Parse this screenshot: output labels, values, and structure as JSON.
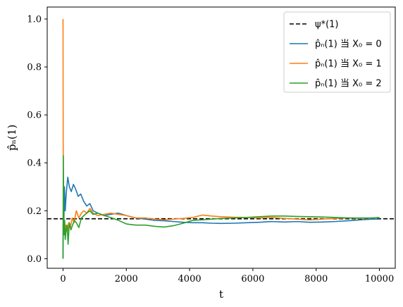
{
  "chart_data": {
    "type": "line",
    "xlabel": "t",
    "ylabel": "p̂ₙ(1)",
    "xlim": [
      -500,
      10500
    ],
    "ylim": [
      -0.04,
      1.05
    ],
    "xticks": [
      0,
      2000,
      4000,
      6000,
      8000,
      10000
    ],
    "xtick_labels": [
      "0",
      "2000",
      "4000",
      "6000",
      "8000",
      "10000"
    ],
    "yticks": [
      0.0,
      0.2,
      0.4,
      0.6,
      0.8,
      1.0
    ],
    "ytick_labels": [
      "0.0",
      "0.2",
      "0.4",
      "0.6",
      "0.8",
      "1.0"
    ],
    "grid": false,
    "legend_position": "top-right",
    "reference_line": {
      "name": "ψ*(1)",
      "y": 0.1667,
      "color": "#000000",
      "style": "dashed"
    },
    "series": [
      {
        "name": "p̂ₙ(1) 当 X₀ = 0",
        "color": "#1f77b4",
        "x": [
          0,
          10,
          25,
          45,
          70,
          100,
          150,
          200,
          260,
          330,
          400,
          480,
          560,
          650,
          750,
          850,
          950,
          1100,
          1300,
          1500,
          1750,
          2000,
          2300,
          2600,
          2900,
          3200,
          3500,
          3800,
          4100,
          4400,
          4700,
          5000,
          5400,
          5800,
          6200,
          6600,
          7000,
          7400,
          7800,
          8200,
          8600,
          9000,
          9400,
          9800,
          10000
        ],
        "y": [
          0.0,
          0.25,
          0.12,
          0.3,
          0.2,
          0.27,
          0.34,
          0.3,
          0.28,
          0.31,
          0.29,
          0.26,
          0.27,
          0.24,
          0.22,
          0.23,
          0.2,
          0.19,
          0.18,
          0.185,
          0.19,
          0.18,
          0.17,
          0.165,
          0.16,
          0.158,
          0.155,
          0.152,
          0.15,
          0.15,
          0.148,
          0.147,
          0.148,
          0.15,
          0.152,
          0.155,
          0.153,
          0.155,
          0.152,
          0.153,
          0.155,
          0.158,
          0.162,
          0.165,
          0.165
        ]
      },
      {
        "name": "p̂ₙ(1) 当 X₀ = 1",
        "color": "#ff7f0e",
        "x": [
          0,
          5,
          10,
          20,
          35,
          50,
          70,
          100,
          140,
          180,
          230,
          290,
          350,
          420,
          500,
          580,
          660,
          750,
          850,
          950,
          1100,
          1300,
          1500,
          1750,
          2000,
          2300,
          2600,
          2900,
          3200,
          3500,
          3800,
          4100,
          4400,
          4700,
          5000,
          5400,
          5800,
          6200,
          6600,
          7000,
          7400,
          7800,
          8200,
          8600,
          9000,
          9400,
          9800,
          10000
        ],
        "y": [
          1.0,
          0.5,
          0.3,
          0.18,
          0.1,
          0.16,
          0.12,
          0.14,
          0.11,
          0.15,
          0.13,
          0.17,
          0.15,
          0.2,
          0.17,
          0.19,
          0.2,
          0.19,
          0.21,
          0.19,
          0.18,
          0.185,
          0.19,
          0.185,
          0.18,
          0.17,
          0.17,
          0.165,
          0.162,
          0.165,
          0.168,
          0.172,
          0.182,
          0.178,
          0.175,
          0.173,
          0.172,
          0.17,
          0.172,
          0.168,
          0.165,
          0.162,
          0.165,
          0.168,
          0.17,
          0.168,
          0.17,
          0.172
        ]
      },
      {
        "name": "p̂ₙ(1) 当 X₀ = 2",
        "color": "#2ca02c",
        "x": [
          0,
          10,
          20,
          35,
          50,
          70,
          100,
          130,
          160,
          200,
          250,
          300,
          360,
          420,
          500,
          580,
          660,
          750,
          850,
          950,
          1100,
          1300,
          1500,
          1750,
          2000,
          2300,
          2600,
          2900,
          3200,
          3500,
          3800,
          4100,
          4400,
          4700,
          5000,
          5400,
          5800,
          6200,
          6600,
          7000,
          7400,
          7800,
          8200,
          8600,
          9000,
          9400,
          9800,
          10000
        ],
        "y": [
          0.0,
          0.43,
          0.2,
          0.1,
          0.16,
          0.08,
          0.12,
          0.14,
          0.06,
          0.15,
          0.12,
          0.14,
          0.16,
          0.15,
          0.13,
          0.17,
          0.18,
          0.19,
          0.2,
          0.185,
          0.19,
          0.18,
          0.172,
          0.16,
          0.145,
          0.14,
          0.14,
          0.135,
          0.132,
          0.138,
          0.148,
          0.16,
          0.162,
          0.165,
          0.168,
          0.17,
          0.172,
          0.175,
          0.178,
          0.178,
          0.176,
          0.175,
          0.174,
          0.172,
          0.17,
          0.17,
          0.17,
          0.172
        ]
      }
    ]
  }
}
